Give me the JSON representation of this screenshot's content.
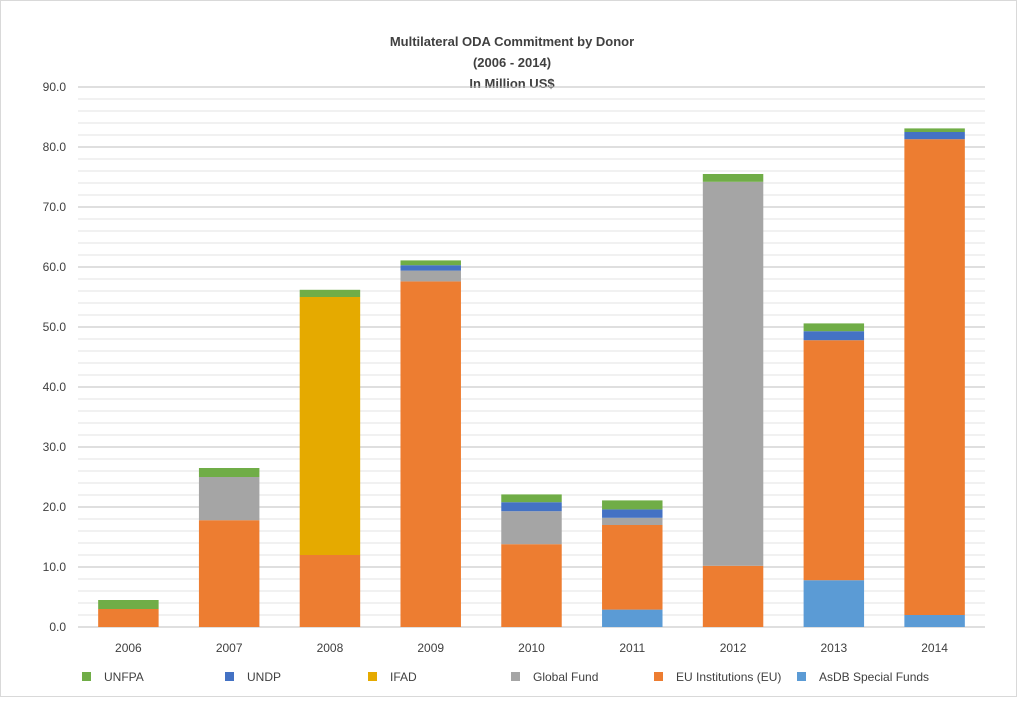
{
  "chart_data": {
    "type": "bar",
    "stacked": true,
    "title_lines": [
      "Multilateral ODA Commitment by Donor",
      "(2006 - 2014)",
      "In Million US$"
    ],
    "xlabel": "",
    "ylabel": "",
    "ylim": [
      0,
      90
    ],
    "yticks": [
      0,
      10,
      20,
      30,
      40,
      50,
      60,
      70,
      80,
      90
    ],
    "ytick_labels": [
      "0.0",
      "10.0",
      "20.0",
      "30.0",
      "40.0",
      "50.0",
      "60.0",
      "70.0",
      "80.0",
      "90.0"
    ],
    "grid": true,
    "legend_position": "bottom",
    "categories": [
      "2006",
      "2007",
      "2008",
      "2009",
      "2010",
      "2011",
      "2012",
      "2013",
      "2014"
    ],
    "stack_order": [
      "AsDB Special Funds",
      "EU Institutions (EU)",
      "Global Fund",
      "IFAD",
      "UNDP",
      "UNFPA"
    ],
    "series": [
      {
        "name": "UNFPA",
        "color": "#70ad47",
        "values": [
          1.5,
          1.5,
          1.2,
          0.8,
          1.3,
          1.5,
          1.3,
          1.3,
          0.6
        ]
      },
      {
        "name": "UNDP",
        "color": "#4472c4",
        "values": [
          0,
          0,
          0,
          0.9,
          1.5,
          1.4,
          0,
          1.5,
          1.2
        ]
      },
      {
        "name": "IFAD",
        "color": "#e5aa00",
        "values": [
          0,
          0,
          43.0,
          0,
          0,
          0,
          0,
          0,
          0
        ]
      },
      {
        "name": "Global Fund",
        "color": "#a5a5a5",
        "values": [
          0,
          7.2,
          0,
          1.8,
          5.5,
          1.2,
          64.0,
          0,
          0
        ]
      },
      {
        "name": "EU Institutions (EU)",
        "color": "#ed7d31",
        "values": [
          3.0,
          17.8,
          12.0,
          57.6,
          13.8,
          14.1,
          10.2,
          40.0,
          79.3
        ]
      },
      {
        "name": "AsDB Special Funds",
        "color": "#5b9bd5",
        "values": [
          0,
          0,
          0,
          0,
          0,
          2.9,
          0,
          7.8,
          2.0
        ]
      }
    ]
  }
}
